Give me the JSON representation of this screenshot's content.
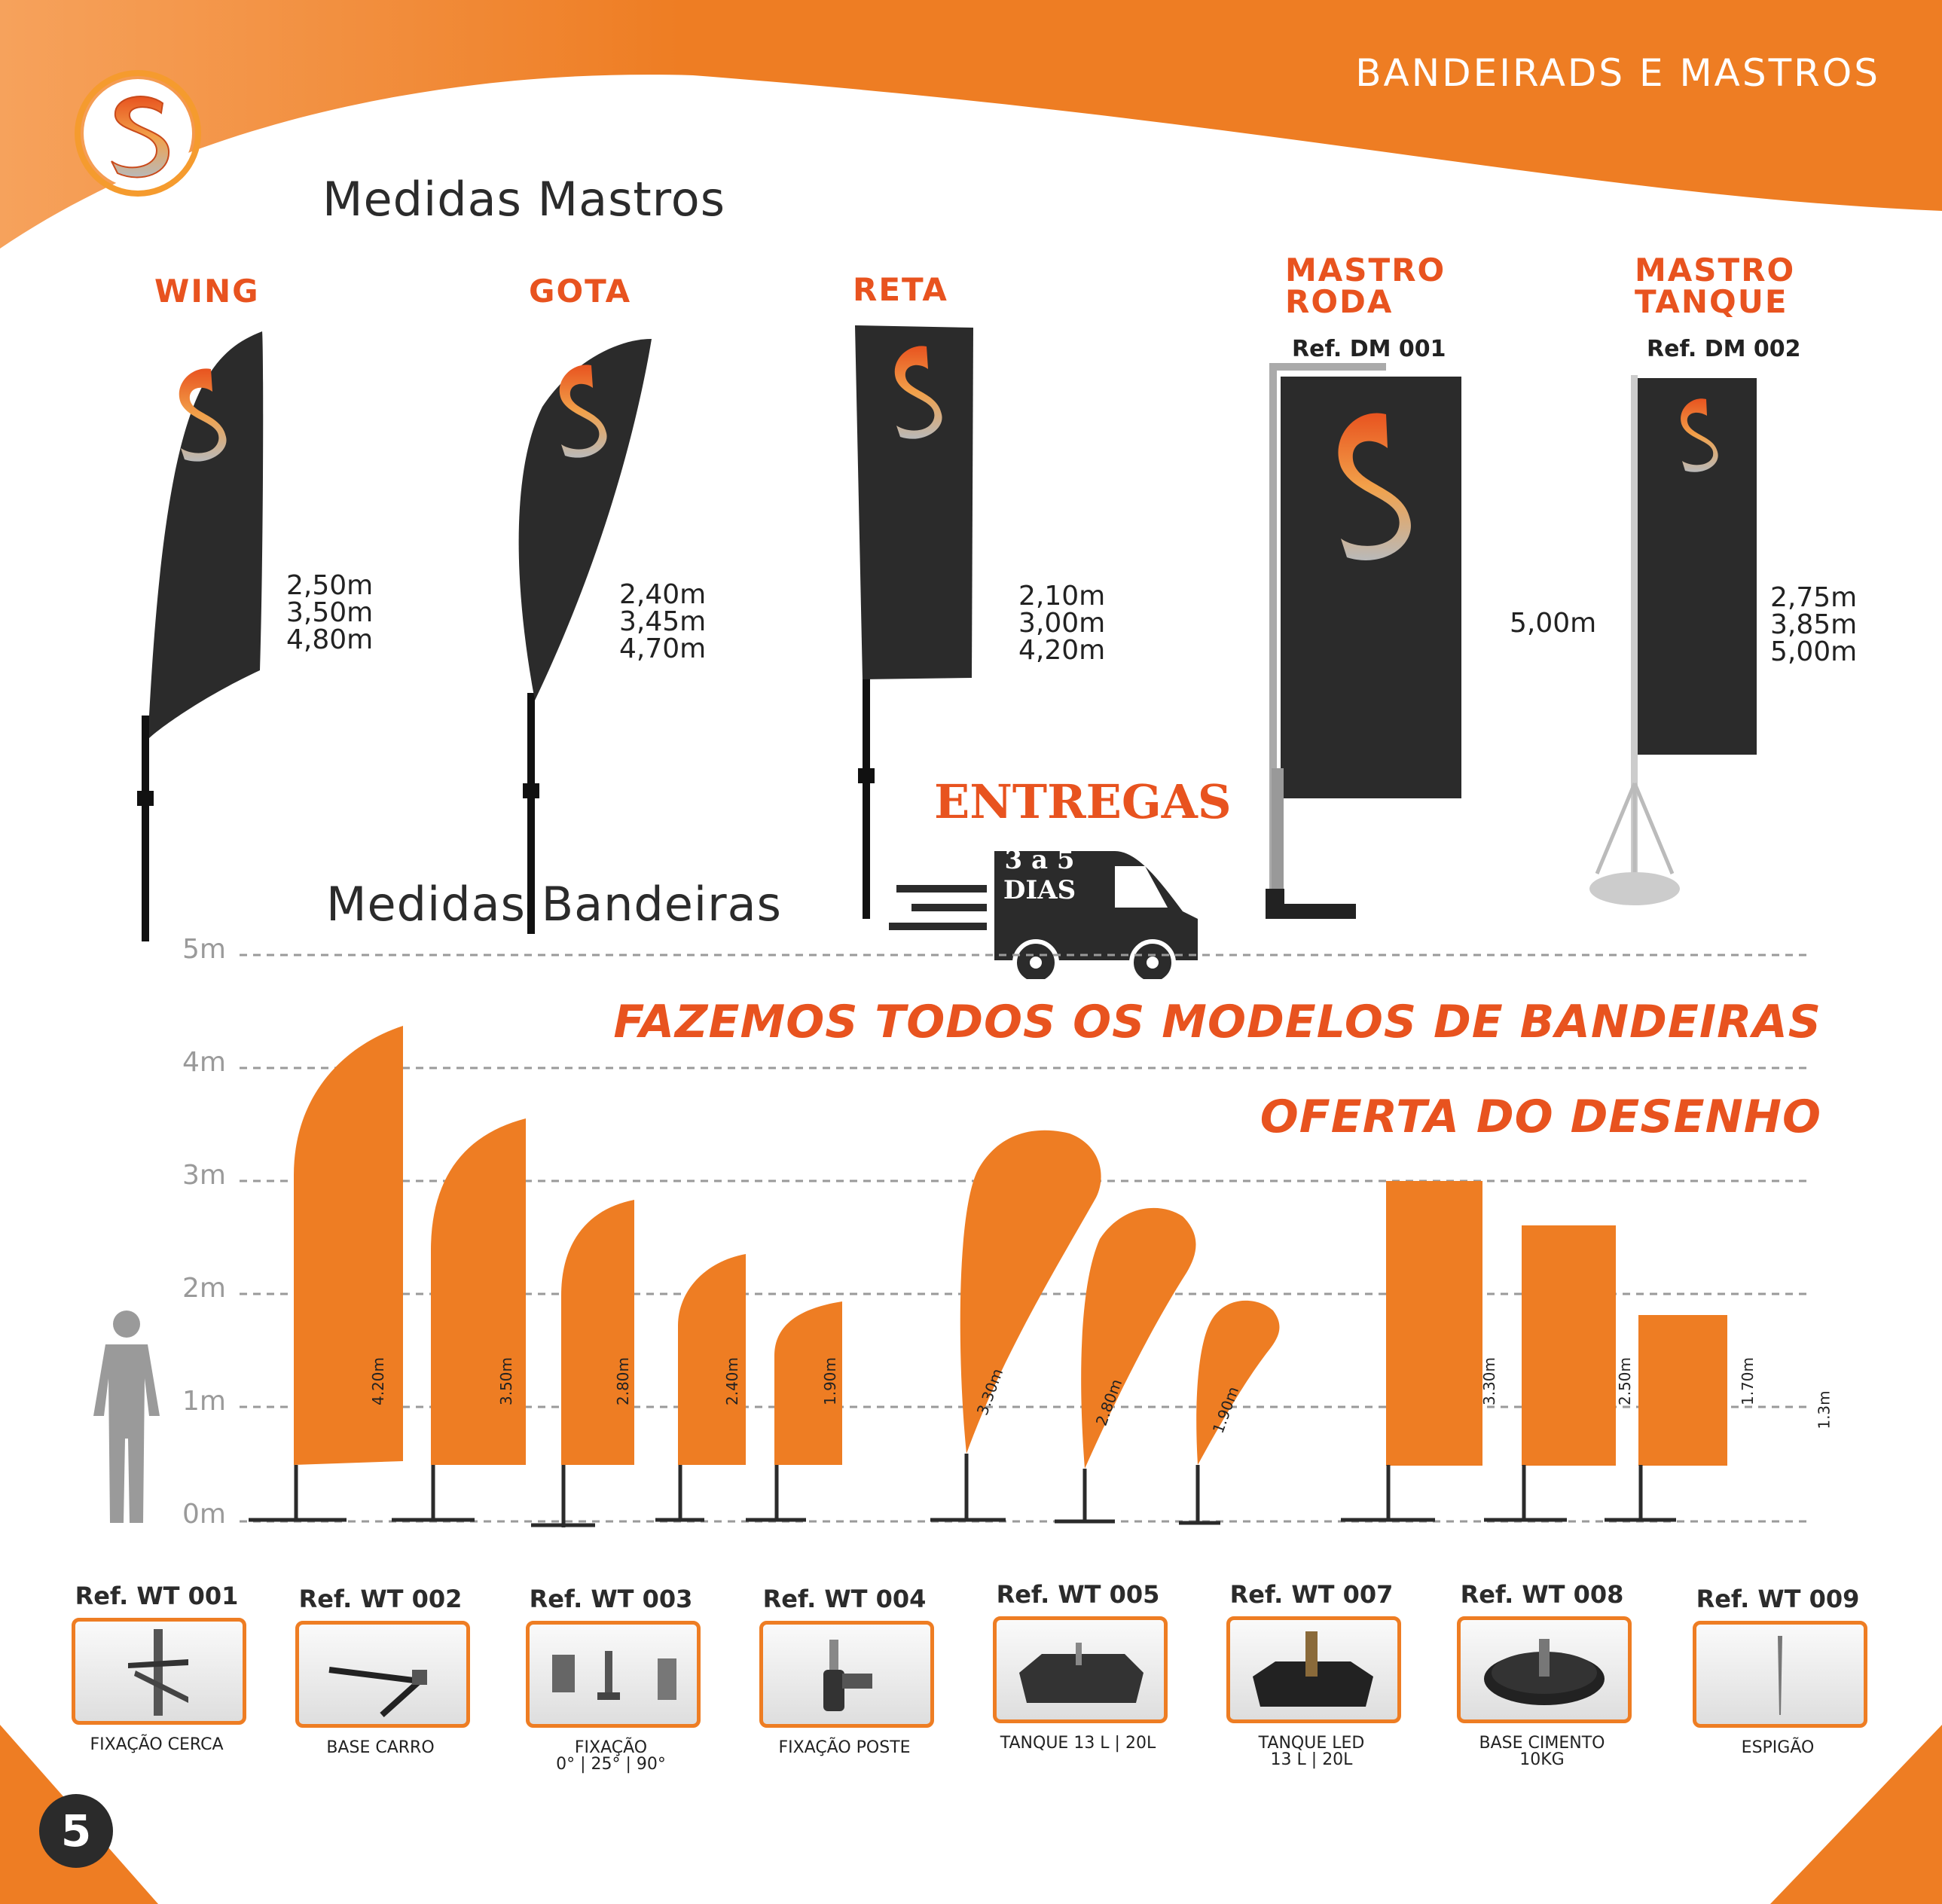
{
  "header": {
    "title": "BANDEIRADS E MASTROS"
  },
  "logo": {
    "icon": "s-logo-icon"
  },
  "mastros": {
    "title": "Medidas Mastros",
    "items": [
      {
        "label": "WING",
        "heights": [
          "2,50m",
          "3,50m",
          "4,80m"
        ]
      },
      {
        "label": "GOTA",
        "heights": [
          "2,40m",
          "3,45m",
          "4,70m"
        ]
      },
      {
        "label": "RETA",
        "heights": [
          "2,10m",
          "3,00m",
          "4,20m"
        ]
      },
      {
        "label_line1": "MASTRO",
        "label_line2": "RODA",
        "ref": "Ref. DM 001",
        "height": "5,00m"
      },
      {
        "label_line1": "MASTRO",
        "label_line2": "TANQUE",
        "ref": "Ref. DM 002",
        "heights": [
          "2,75m",
          "3,85m",
          "5,00m"
        ]
      }
    ]
  },
  "delivery": {
    "title": "ENTREGAS",
    "line1": "3 a 5",
    "line2": "DIAS",
    "icon": "van-icon"
  },
  "bandeiras": {
    "title": "Medidas Bandeiras",
    "banner_line1": "FAZEMOS TODOS OS MODELOS DE BANDEIRAS",
    "banner_line2": "OFERTA DO DESENHO",
    "y_ticks": [
      "5m",
      "4m",
      "3m",
      "2m",
      "1m",
      "0m"
    ],
    "flag_heights": [
      "4.20m",
      "3.50m",
      "2.80m",
      "2.40m",
      "1.90m",
      "3.30m",
      "2.80m",
      "1.90m",
      "3.30m",
      "2.50m",
      "1.70m",
      "1.3m"
    ],
    "person_icon": "person-silhouette-icon"
  },
  "bases": [
    {
      "ref": "Ref. WT 001",
      "caption": "FIXAÇÃO CERCA"
    },
    {
      "ref": "Ref. WT 002",
      "caption": "BASE CARRO"
    },
    {
      "ref": "Ref. WT 003",
      "caption": "FIXAÇÃO\n0° | 25° | 90°"
    },
    {
      "ref": "Ref. WT 004",
      "caption": "FIXAÇÃO POSTE"
    },
    {
      "ref": "Ref. WT 005",
      "caption": "TANQUE 13 L | 20L"
    },
    {
      "ref": "Ref. WT 007",
      "caption": "TANQUE LED\n13 L | 20L"
    },
    {
      "ref": "Ref. WT 008",
      "caption": "BASE CIMENTO\n10KG"
    },
    {
      "ref": "Ref. WT 009",
      "caption": "ESPIGÃO"
    }
  ],
  "page": {
    "number": "5"
  },
  "colors": {
    "accent": "#ee7d23",
    "label": "#e8531f",
    "dark": "#2b2b2b"
  }
}
